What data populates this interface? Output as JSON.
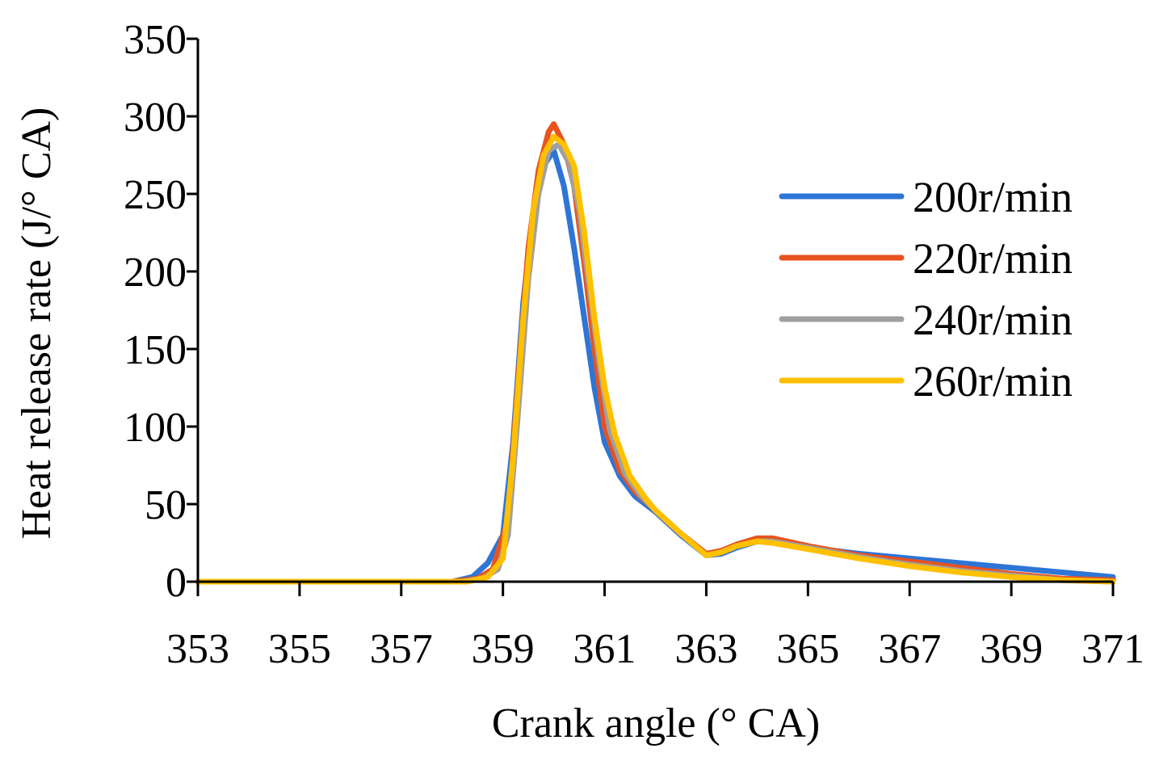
{
  "chart_data": {
    "type": "line",
    "title": "",
    "xlabel": "Crank angle (° CA)",
    "ylabel": "Heat release rate (J/° CA)",
    "xlim": [
      353,
      371
    ],
    "ylim": [
      0,
      350
    ],
    "xticks": [
      353,
      355,
      357,
      359,
      361,
      363,
      365,
      367,
      369,
      371
    ],
    "xtick_labels": [
      "353",
      "355",
      "357",
      "359",
      "361",
      "363",
      "365",
      "367",
      "369",
      "371"
    ],
    "yticks": [
      0,
      50,
      100,
      150,
      200,
      250,
      300,
      350
    ],
    "ytick_labels": [
      "0",
      "50",
      "100",
      "150",
      "200",
      "250",
      "300",
      "350"
    ],
    "grid": false,
    "legend_position": "right",
    "series": [
      {
        "name": "200r/min",
        "color": "#2E75D6",
        "x": [
          353,
          358,
          358.4,
          358.7,
          359,
          359.2,
          359.4,
          359.6,
          359.8,
          360,
          360.2,
          360.4,
          360.6,
          360.8,
          361,
          361.3,
          361.6,
          362,
          362.5,
          363,
          363.3,
          363.6,
          364,
          364.3,
          365,
          366,
          367,
          368,
          369,
          370,
          371
        ],
        "y": [
          0,
          0,
          3,
          12,
          30,
          90,
          180,
          240,
          268,
          278,
          255,
          215,
          170,
          125,
          90,
          68,
          55,
          45,
          30,
          17,
          18,
          22,
          26,
          26,
          22,
          18,
          15,
          12,
          9,
          6,
          3
        ]
      },
      {
        "name": "220r/min",
        "color": "#E8531F",
        "x": [
          353,
          358,
          358.5,
          358.8,
          359.1,
          359.3,
          359.5,
          359.7,
          359.9,
          360,
          360.2,
          360.4,
          360.6,
          360.8,
          361,
          361.3,
          361.6,
          362,
          362.5,
          363,
          363.3,
          363.6,
          364,
          364.3,
          365,
          366,
          367,
          368,
          369,
          370,
          371
        ],
        "y": [
          0,
          0,
          2,
          8,
          40,
          130,
          215,
          265,
          290,
          295,
          282,
          255,
          205,
          150,
          100,
          72,
          58,
          46,
          31,
          18,
          20,
          24,
          28,
          28,
          23,
          17,
          13,
          9,
          5,
          2,
          1
        ]
      },
      {
        "name": "240r/min",
        "color": "#A0A0A0",
        "x": [
          353,
          358.2,
          358.6,
          358.9,
          359.1,
          359.3,
          359.5,
          359.7,
          359.9,
          360.1,
          360.3,
          360.5,
          360.7,
          360.9,
          361.1,
          361.4,
          361.7,
          362,
          362.5,
          363,
          363.3,
          363.6,
          364,
          364.3,
          365,
          366,
          367,
          368,
          369,
          370,
          371
        ],
        "y": [
          0,
          0,
          2,
          8,
          30,
          110,
          195,
          250,
          278,
          282,
          270,
          240,
          190,
          140,
          98,
          70,
          56,
          46,
          31,
          17,
          19,
          23,
          26,
          26,
          22,
          16,
          11,
          7,
          4,
          1,
          0
        ]
      },
      {
        "name": "260r/min",
        "color": "#FFC000",
        "x": [
          353,
          358.3,
          358.7,
          359,
          359.2,
          359.4,
          359.6,
          359.8,
          360,
          360.2,
          360.4,
          360.6,
          360.8,
          361,
          361.2,
          361.5,
          361.8,
          362,
          362.5,
          363,
          363.3,
          363.6,
          364,
          364.3,
          365,
          366,
          367,
          368,
          369,
          370,
          371
        ],
        "y": [
          0,
          0,
          3,
          15,
          80,
          170,
          240,
          275,
          287,
          282,
          268,
          225,
          170,
          125,
          95,
          68,
          54,
          46,
          31,
          17,
          19,
          23,
          26,
          25,
          21,
          15,
          10,
          6,
          3,
          1,
          0
        ]
      }
    ]
  }
}
